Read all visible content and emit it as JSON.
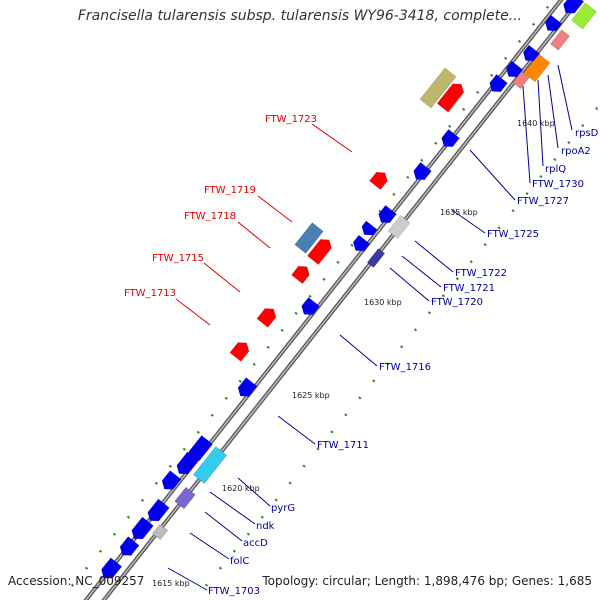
{
  "title": "Francisella tularensis subsp. tularensis WY96-3418, complete...",
  "footer": {
    "accession": "Accession: NC_009257",
    "topology": "Topology: circular; Length: 1,898,476 bp; Genes: 1,685"
  },
  "colors": {
    "forward_gene": "#ff0000",
    "reverse_gene": "#0000ee",
    "forward_label": "#dd0000",
    "reverse_label": "#000099",
    "backbone": "#888888",
    "tick": "#006600"
  },
  "scale_labels": [
    "1615 kbp",
    "1620 kbp",
    "1625 kbp",
    "1630 kbp",
    "1635 kbp",
    "1640 kbp"
  ],
  "forward_labels": [
    "FTW_1723",
    "FTW_1719",
    "FTW_1718",
    "FTW_1715",
    "FTW_1713"
  ],
  "reverse_labels": [
    "rpsD",
    "rpoA2",
    "rplQ",
    "FTW_1730",
    "FTW_1727",
    "FTW_1725",
    "FTW_1722",
    "FTW_1721",
    "FTW_1720",
    "FTW_1716",
    "FTW_1711",
    "pyrG",
    "ndk",
    "accD",
    "folC",
    "FTW_1703"
  ]
}
